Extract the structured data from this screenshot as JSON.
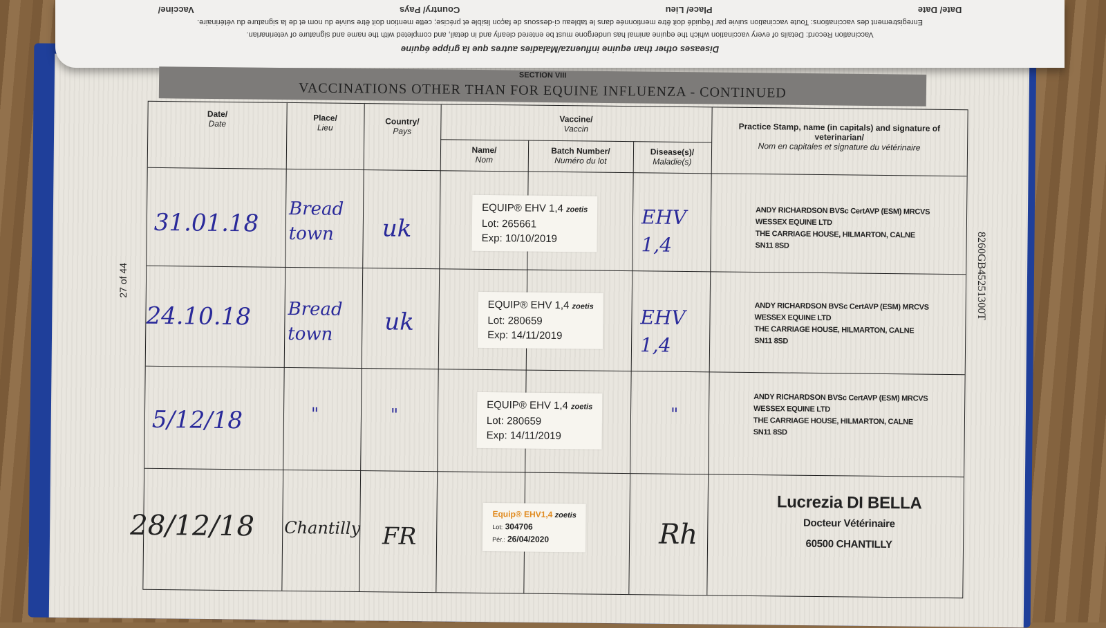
{
  "flap": {
    "title": "Diseases other than equine influenza/Maladies autres que la grippe équine",
    "instructions_en": "Vaccination Record: Details of every vaccination which the equine animal has undergone must be entered clearly and in detail, and completed with the name and signature of veterinarian.",
    "instructions_fr": "Enregistrement des vaccinations: Toute vaccination suivie par l'équidé doit être mentionnée dans le tableau ci-dessous de façon lisible et précise; cette mention doit être suivie du nom et de la signature du vétérinaire.",
    "headers": [
      "Date/ Date",
      "Place/ Lieu",
      "Country/ Pays",
      "Vaccine/"
    ]
  },
  "section": {
    "number": "SECTION VIII",
    "title": "VACCINATIONS OTHER THAN FOR EQUINE INFLUENZA - CONTINUED"
  },
  "page_number": "27 of 44",
  "passport_id": "8260GB452513​00T",
  "columns": {
    "date": {
      "en": "Date/",
      "fr": "Date"
    },
    "place": {
      "en": "Place/",
      "fr": "Lieu"
    },
    "country": {
      "en": "Country/",
      "fr": "Pays"
    },
    "vaccine": {
      "en": "Vaccine/",
      "fr": "Vaccin"
    },
    "name": {
      "en": "Name/",
      "fr": "Nom"
    },
    "batch": {
      "en": "Batch Number/",
      "fr": "Numéro du lot"
    },
    "disease": {
      "en": "Disease(s)/",
      "fr": "Maladie(s)"
    },
    "stamp": {
      "en": "Practice Stamp, name (in capitals) and signature of veterinarian/",
      "fr": "Nom en capitales et signature du vétérinaire"
    }
  },
  "rows": [
    {
      "date": "31.01.18",
      "place": "Bread town",
      "country": "uk",
      "label": {
        "name": "EQUIP® EHV 1,4",
        "brand": "zoetis",
        "lot_label": "Lot:",
        "lot": "265661",
        "exp_label": "Exp:",
        "exp": "10/10/2019"
      },
      "disease": "EHV 1,4",
      "stamp": [
        "ANDY RICHARDSON BVSc CertAVP (ESM) MRCVS",
        "WESSEX EQUINE LTD",
        "THE CARRIAGE HOUSE, HILMARTON, CALNE",
        "SN11 8SD"
      ]
    },
    {
      "date": "24.10.18",
      "place": "Bread town",
      "country": "uk",
      "label": {
        "name": "EQUIP® EHV 1,4",
        "brand": "zoetis",
        "lot_label": "Lot:",
        "lot": "280659",
        "exp_label": "Exp:",
        "exp": "14/11/2019"
      },
      "disease": "EHV 1,4",
      "stamp": [
        "ANDY RICHARDSON BVSc CertAVP (ESM) MRCVS",
        "WESSEX EQUINE LTD",
        "THE CARRIAGE HOUSE, HILMARTON, CALNE",
        "SN11 8SD"
      ]
    },
    {
      "date": "5/12/18",
      "place": "\"",
      "country": "\"",
      "label": {
        "name": "EQUIP® EHV 1,4",
        "brand": "zoetis",
        "lot_label": "Lot:",
        "lot": "280659",
        "exp_label": "Exp:",
        "exp": "14/11/2019"
      },
      "disease": "\"",
      "stamp": [
        "ANDY RICHARDSON BVSc CertAVP (ESM) MRCVS",
        "WESSEX EQUINE LTD",
        "THE CARRIAGE HOUSE, HILMARTON, CALNE",
        "SN11 8SD"
      ]
    },
    {
      "date": "28/12/18",
      "place": "Chantilly",
      "country": "FR",
      "label": {
        "name": "Equip® EHV1,4",
        "brand": "zoetis",
        "lot_label": "Lot:",
        "lot": "304706",
        "exp_label": "Pér.:",
        "exp": "26/04/2020"
      },
      "disease": "Rh",
      "stamp": [
        "Lucrezia DI BELLA",
        "Docteur Vétérinaire",
        "60500 CHANTILLY"
      ]
    }
  ]
}
